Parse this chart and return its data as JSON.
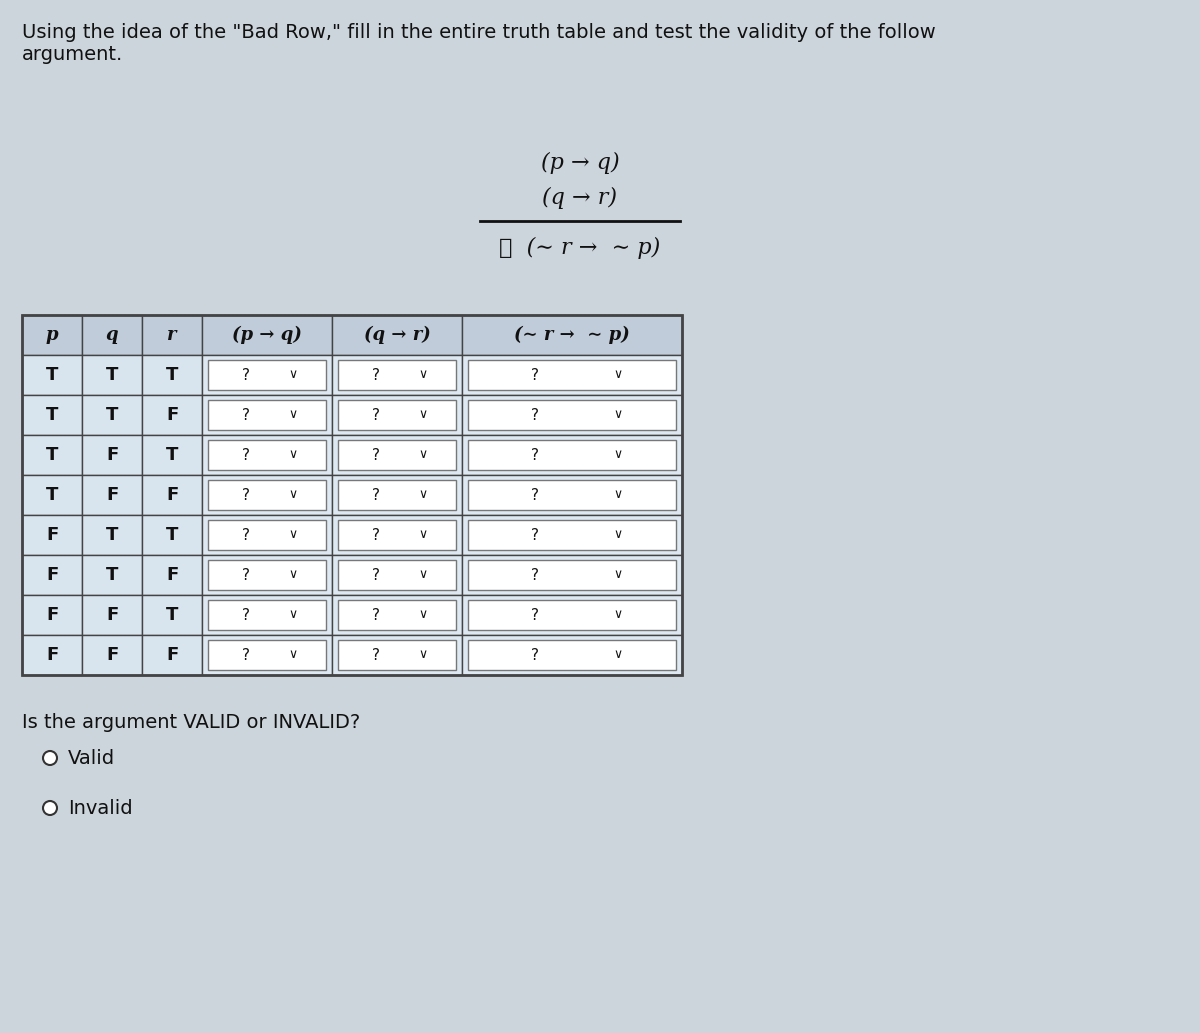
{
  "title_line1": "Using the idea of the \"Bad Row,\" fill in the entire truth table and test the validity of the follow",
  "title_line2": "argument.",
  "premise1": "(p → q)",
  "premise2": "(q → r)",
  "conclusion": "∴  (∼ r →  ∼ p)",
  "col_headers": [
    "p",
    "q",
    "r",
    "(p → q)",
    "(q → r)",
    "(∼ r →  ∼ p)"
  ],
  "rows": [
    [
      "T",
      "T",
      "T"
    ],
    [
      "T",
      "T",
      "F"
    ],
    [
      "T",
      "F",
      "T"
    ],
    [
      "T",
      "F",
      "F"
    ],
    [
      "F",
      "T",
      "T"
    ],
    [
      "F",
      "T",
      "F"
    ],
    [
      "F",
      "F",
      "T"
    ],
    [
      "F",
      "F",
      "F"
    ]
  ],
  "validity_question": "Is the argument VALID or INVALID?",
  "option_valid": "Valid",
  "option_invalid": "Invalid",
  "bg_color": "#cdd5dc",
  "table_bg": "#d8e4ee",
  "table_header_bg": "#c0ccda",
  "dropdown_bg": "#dde8f2",
  "dropdown_border": "#777777",
  "table_border": "#444444",
  "text_color": "#111111",
  "title_fontsize": 14,
  "formula_fontsize": 16,
  "header_fontsize": 13,
  "cell_fontsize": 13,
  "dropdown_fontsize": 11
}
